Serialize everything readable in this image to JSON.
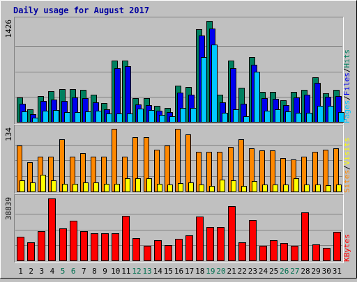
{
  "chart_data": {
    "type": "bar",
    "title": "Daily usage for August 2017",
    "categories": [
      "1",
      "2",
      "3",
      "4",
      "5",
      "6",
      "7",
      "8",
      "9",
      "10",
      "11",
      "12",
      "13",
      "14",
      "15",
      "16",
      "17",
      "18",
      "19",
      "20",
      "21",
      "22",
      "23",
      "24",
      "25",
      "26",
      "27",
      "28",
      "29",
      "30",
      "31"
    ],
    "weekend_days": [
      "5",
      "6",
      "12",
      "13",
      "19",
      "20",
      "26",
      "27"
    ],
    "grid": true,
    "colors": {
      "background": "#c0c0c0",
      "panel": "#c0c0c0",
      "title": "#0000a0",
      "tick": "#000000",
      "weekend_tick": "#007050",
      "pages": "#00c8ff",
      "files": "#0000ee",
      "hits": "#008060",
      "sites": "#ffff00",
      "visits": "#ff8800",
      "kbytes": "#ff0000"
    },
    "panels": [
      {
        "id": "traffic",
        "max_label": "1426",
        "ymax": 1426,
        "legend": [
          {
            "text": "Pages",
            "color": "#00c8ff"
          },
          {
            "text": "/",
            "color": "#000000"
          },
          {
            "text": "Files",
            "color": "#0000ee"
          },
          {
            "text": "/",
            "color": "#000000"
          },
          {
            "text": "Hits",
            "color": "#008060"
          }
        ],
        "series": [
          {
            "name": "Hits",
            "color": "#008060",
            "values": [
              340,
              180,
              365,
              430,
              465,
              465,
              450,
              385,
              265,
              870,
              870,
              330,
              330,
              230,
              200,
              510,
              495,
              1310,
              1426,
              385,
              870,
              485,
              910,
              420,
              425,
              305,
              425,
              455,
              630,
              405,
              455
            ]
          },
          {
            "name": "Files",
            "color": "#0000ee",
            "values": [
              255,
              110,
              295,
              315,
              295,
              340,
              330,
              275,
              180,
              760,
              790,
              250,
              235,
              155,
              135,
              410,
              380,
              1215,
              1315,
              275,
              755,
              255,
              810,
              330,
              325,
              235,
              345,
              385,
              550,
              350,
              365
            ]
          },
          {
            "name": "Pages",
            "color": "#00c8ff",
            "values": [
              150,
              60,
              160,
              165,
              140,
              140,
              150,
              160,
              120,
              115,
              115,
              185,
              170,
              100,
              80,
              200,
              200,
              910,
              1090,
              130,
              175,
              75,
              705,
              160,
              175,
              145,
              130,
              130,
              230,
              230,
              135
            ]
          }
        ]
      },
      {
        "id": "visitors",
        "max_label": "134",
        "ymax": 134,
        "legend": [
          {
            "text": "Sites",
            "color": "#ff8800"
          },
          {
            "text": "/",
            "color": "#000000"
          },
          {
            "text": "Visits",
            "color": "#ffff00"
          }
        ],
        "series": [
          {
            "name": "Visits",
            "color": "#ff8800",
            "values": [
              99,
              62,
              75,
              75,
              111,
              75,
              82,
              75,
              74,
              134,
              75,
              116,
              116,
              89,
              99,
              134,
              122,
              85,
              85,
              85,
              96,
              112,
              92,
              88,
              88,
              72,
              68,
              75,
              85,
              90,
              92
            ]
          },
          {
            "name": "Sites",
            "color": "#ffff00",
            "values": [
              24,
              20,
              36,
              24,
              17,
              17,
              20,
              20,
              17,
              17,
              28,
              29,
              28,
              17,
              15,
              18,
              20,
              15,
              12,
              25,
              24,
              12,
              22,
              15,
              15,
              15,
              29,
              15,
              15,
              14,
              15
            ]
          }
        ]
      },
      {
        "id": "kbytes",
        "max_label": "38839",
        "ymax": 38839,
        "legend": [
          {
            "text": "KBytes",
            "color": "#ff0000"
          }
        ],
        "series": [
          {
            "name": "KBytes",
            "color": "#ff0000",
            "values": [
              15000,
              11500,
              18500,
              38839,
              20000,
              25000,
              18500,
              17000,
              17000,
              17000,
              28000,
              14000,
              9000,
              12500,
              9500,
              13500,
              15500,
              27500,
              21000,
              21000,
              34000,
              11500,
              25500,
              9000,
              12500,
              11000,
              9000,
              30000,
              10000,
              8000,
              18000
            ]
          }
        ]
      }
    ]
  }
}
